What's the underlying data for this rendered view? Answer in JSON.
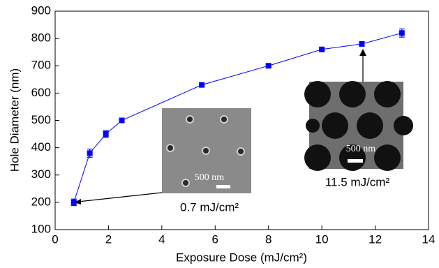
{
  "chart_data": {
    "type": "line",
    "x_label": "Exposure Dose (mJ/cm²)",
    "y_label": "Hole Diameter (nm)",
    "x": [
      0.7,
      1.3,
      1.9,
      2.5,
      5.5,
      8,
      10,
      11.5,
      13
    ],
    "series": [
      {
        "color": "#0000ff",
        "values": [
          200,
          380,
          450,
          500,
          630,
          700,
          760,
          780,
          820
        ],
        "errors": [
          12,
          15,
          12,
          8,
          5,
          5,
          5,
          5,
          15
        ]
      }
    ],
    "xlim": [
      0,
      14
    ],
    "xticks": [
      0,
      2,
      4,
      6,
      8,
      10,
      12,
      14
    ],
    "ylim": [
      100,
      900
    ],
    "yticks": [
      100,
      200,
      300,
      400,
      500,
      600,
      700,
      800,
      900
    ],
    "annotations": [
      {
        "text": "0.7 mJ/cm²",
        "scale": "500 nm"
      },
      {
        "text": "11.5 mJ/cm²",
        "scale": "500 nm"
      }
    ]
  }
}
